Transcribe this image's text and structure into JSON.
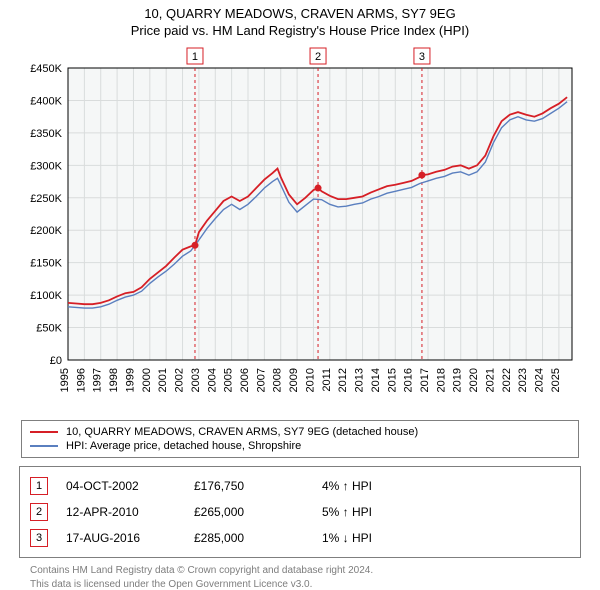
{
  "title_line1": "10, QUARRY MEADOWS, CRAVEN ARMS, SY7 9EG",
  "title_line2": "Price paid vs. HM Land Registry's House Price Index (HPI)",
  "title_fontsize": 13,
  "chart": {
    "plot_bg": "#f5f7f7",
    "grid_color": "#d9dcdc",
    "axis_color": "#000000",
    "ylim": [
      0,
      450000
    ],
    "ytick_step": 50000,
    "ytick_labels": [
      "£0",
      "£50K",
      "£100K",
      "£150K",
      "£200K",
      "£250K",
      "£300K",
      "£350K",
      "£400K",
      "£450K"
    ],
    "xlim": [
      1995,
      2025.8
    ],
    "xtick_step": 1,
    "xtick_labels": [
      "1995",
      "1996",
      "1997",
      "1998",
      "1999",
      "2000",
      "2001",
      "2002",
      "2003",
      "2004",
      "2005",
      "2006",
      "2007",
      "2008",
      "2009",
      "2010",
      "2011",
      "2012",
      "2013",
      "2014",
      "2015",
      "2016",
      "2017",
      "2018",
      "2019",
      "2020",
      "2021",
      "2022",
      "2023",
      "2024",
      "2025"
    ],
    "series": {
      "property": {
        "color": "#d61f26",
        "width": 1.8,
        "x": [
          1995,
          1995.5,
          1996,
          1996.5,
          1997,
          1997.5,
          1998,
          1998.5,
          1999,
          1999.5,
          2000,
          2000.5,
          2001,
          2001.5,
          2002,
          2002.5,
          2002.76,
          2003,
          2003.5,
          2004,
          2004.5,
          2005,
          2005.5,
          2006,
          2006.5,
          2007,
          2007.5,
          2007.8,
          2008,
          2008.5,
          2009,
          2009.5,
          2010,
          2010.28,
          2010.5,
          2011,
          2011.5,
          2012,
          2012.5,
          2013,
          2013.5,
          2014,
          2014.5,
          2015,
          2015.5,
          2016,
          2016.5,
          2016.63,
          2017,
          2017.5,
          2018,
          2018.5,
          2019,
          2019.5,
          2020,
          2020.5,
          2021,
          2021.5,
          2022,
          2022.5,
          2023,
          2023.5,
          2024,
          2024.5,
          2025,
          2025.5
        ],
        "y": [
          88000,
          87000,
          86000,
          86000,
          88000,
          92000,
          98000,
          103000,
          105000,
          112000,
          125000,
          135000,
          145000,
          158000,
          170000,
          175000,
          176750,
          197000,
          215000,
          230000,
          245000,
          252000,
          245000,
          252000,
          265000,
          278000,
          288000,
          295000,
          282000,
          255000,
          240000,
          250000,
          262000,
          265000,
          260000,
          253000,
          248000,
          248000,
          250000,
          252000,
          258000,
          263000,
          268000,
          270000,
          273000,
          276000,
          282000,
          285000,
          286000,
          290000,
          293000,
          298000,
          300000,
          295000,
          300000,
          315000,
          345000,
          368000,
          378000,
          382000,
          378000,
          375000,
          380000,
          388000,
          395000,
          405000
        ]
      },
      "hpi": {
        "color": "#5a7fbf",
        "width": 1.4,
        "x": [
          1995,
          1995.5,
          1996,
          1996.5,
          1997,
          1997.5,
          1998,
          1998.5,
          1999,
          1999.5,
          2000,
          2000.5,
          2001,
          2001.5,
          2002,
          2002.5,
          2003,
          2003.5,
          2004,
          2004.5,
          2005,
          2005.5,
          2006,
          2006.5,
          2007,
          2007.5,
          2007.8,
          2008,
          2008.5,
          2009,
          2009.5,
          2010,
          2010.5,
          2011,
          2011.5,
          2012,
          2012.5,
          2013,
          2013.5,
          2014,
          2014.5,
          2015,
          2015.5,
          2016,
          2016.5,
          2017,
          2017.5,
          2018,
          2018.5,
          2019,
          2019.5,
          2020,
          2020.5,
          2021,
          2021.5,
          2022,
          2022.5,
          2023,
          2023.5,
          2024,
          2024.5,
          2025,
          2025.5
        ],
        "y": [
          82000,
          81000,
          80000,
          80000,
          82000,
          86000,
          92000,
          97000,
          100000,
          106000,
          118000,
          128000,
          137000,
          148000,
          160000,
          168000,
          185000,
          203000,
          218000,
          232000,
          240000,
          232000,
          240000,
          252000,
          265000,
          275000,
          280000,
          270000,
          243000,
          228000,
          238000,
          248000,
          247000,
          240000,
          236000,
          237000,
          240000,
          242000,
          248000,
          252000,
          257000,
          260000,
          263000,
          266000,
          272000,
          276000,
          280000,
          283000,
          288000,
          290000,
          285000,
          290000,
          305000,
          335000,
          358000,
          370000,
          375000,
          370000,
          368000,
          372000,
          380000,
          388000,
          398000
        ]
      }
    },
    "sale_points": {
      "color": "#d61f26",
      "radius": 3.5,
      "items": [
        {
          "x": 2002.76,
          "y": 176750
        },
        {
          "x": 2010.28,
          "y": 265000
        },
        {
          "x": 2016.63,
          "y": 285000
        }
      ]
    },
    "markers": {
      "line_color": "#d61f26",
      "box_border": "#d61f26",
      "items": [
        {
          "label": "1",
          "x": 2002.76
        },
        {
          "label": "2",
          "x": 2010.28
        },
        {
          "label": "3",
          "x": 2016.63
        }
      ]
    }
  },
  "legend": {
    "border_color": "#7f7f7f",
    "items": [
      {
        "color": "#d61f26",
        "label": "10, QUARRY MEADOWS, CRAVEN ARMS, SY7 9EG (detached house)"
      },
      {
        "color": "#5a7fbf",
        "label": "HPI: Average price, detached house, Shropshire"
      }
    ]
  },
  "hpi_table": {
    "border_color": "#7f7f7f",
    "box_border": "#d61f26",
    "rows": [
      {
        "idx": "1",
        "date": "04-OCT-2002",
        "price": "£176,750",
        "pct": "4% ↑ HPI"
      },
      {
        "idx": "2",
        "date": "12-APR-2010",
        "price": "£265,000",
        "pct": "5% ↑ HPI"
      },
      {
        "idx": "3",
        "date": "17-AUG-2016",
        "price": "£285,000",
        "pct": "1% ↓ HPI"
      }
    ]
  },
  "footer": {
    "line1": "Contains HM Land Registry data © Crown copyright and database right 2024.",
    "line2": "This data is licensed under the Open Government Licence v3.0."
  }
}
